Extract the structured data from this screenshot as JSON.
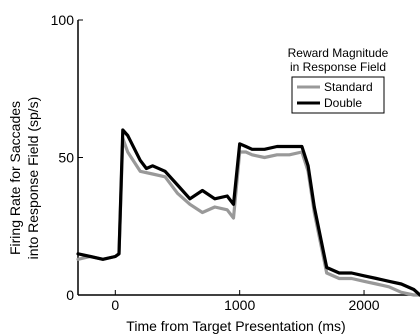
{
  "chart_data": {
    "type": "line",
    "xlabel": "Time from Target Presentation (ms)",
    "ylabel_line1": "Firing Rate for Saccades",
    "ylabel_line2": "into Response Field (sp/s)",
    "xlim": [
      -300,
      2450
    ],
    "ylim": [
      0,
      100
    ],
    "xticks": [
      0,
      1000,
      2000
    ],
    "yticks": [
      0,
      50,
      100
    ],
    "xtick_labels": [
      "0",
      "1000",
      "2000"
    ],
    "ytick_labels": [
      "0",
      "50",
      "100"
    ],
    "grid": false,
    "legend": {
      "title_line1": "Reward Magnitude",
      "title_line2": "in Response Field",
      "placement": "top-right"
    },
    "series": [
      {
        "name": "Standard",
        "color": "#999999",
        "x": [
          -300,
          -200,
          -100,
          0,
          30,
          60,
          100,
          200,
          300,
          400,
          500,
          600,
          700,
          800,
          900,
          950,
          1000,
          1050,
          1100,
          1200,
          1300,
          1400,
          1500,
          1550,
          1600,
          1700,
          1800,
          1900,
          2000,
          2100,
          2200,
          2300,
          2400,
          2450
        ],
        "y": [
          13,
          14,
          13,
          14,
          15,
          57,
          52,
          45,
          44,
          43,
          37,
          33,
          30,
          32,
          31,
          28,
          52,
          52,
          51,
          50,
          51,
          51,
          52,
          45,
          30,
          8,
          6,
          6,
          5,
          4,
          3,
          1,
          0,
          0
        ]
      },
      {
        "name": "Double",
        "color": "#000000",
        "x": [
          -300,
          -200,
          -100,
          0,
          30,
          60,
          100,
          200,
          250,
          300,
          400,
          500,
          600,
          700,
          800,
          900,
          950,
          1000,
          1050,
          1100,
          1200,
          1300,
          1400,
          1500,
          1550,
          1600,
          1700,
          1800,
          1900,
          2000,
          2100,
          2200,
          2300,
          2400,
          2450
        ],
        "y": [
          15,
          14,
          13,
          14,
          15,
          60,
          58,
          49,
          46,
          47,
          45,
          40,
          35,
          38,
          35,
          36,
          33,
          55,
          54,
          53,
          53,
          54,
          54,
          54,
          47,
          32,
          10,
          8,
          8,
          7,
          6,
          5,
          4,
          2,
          0
        ]
      }
    ]
  }
}
